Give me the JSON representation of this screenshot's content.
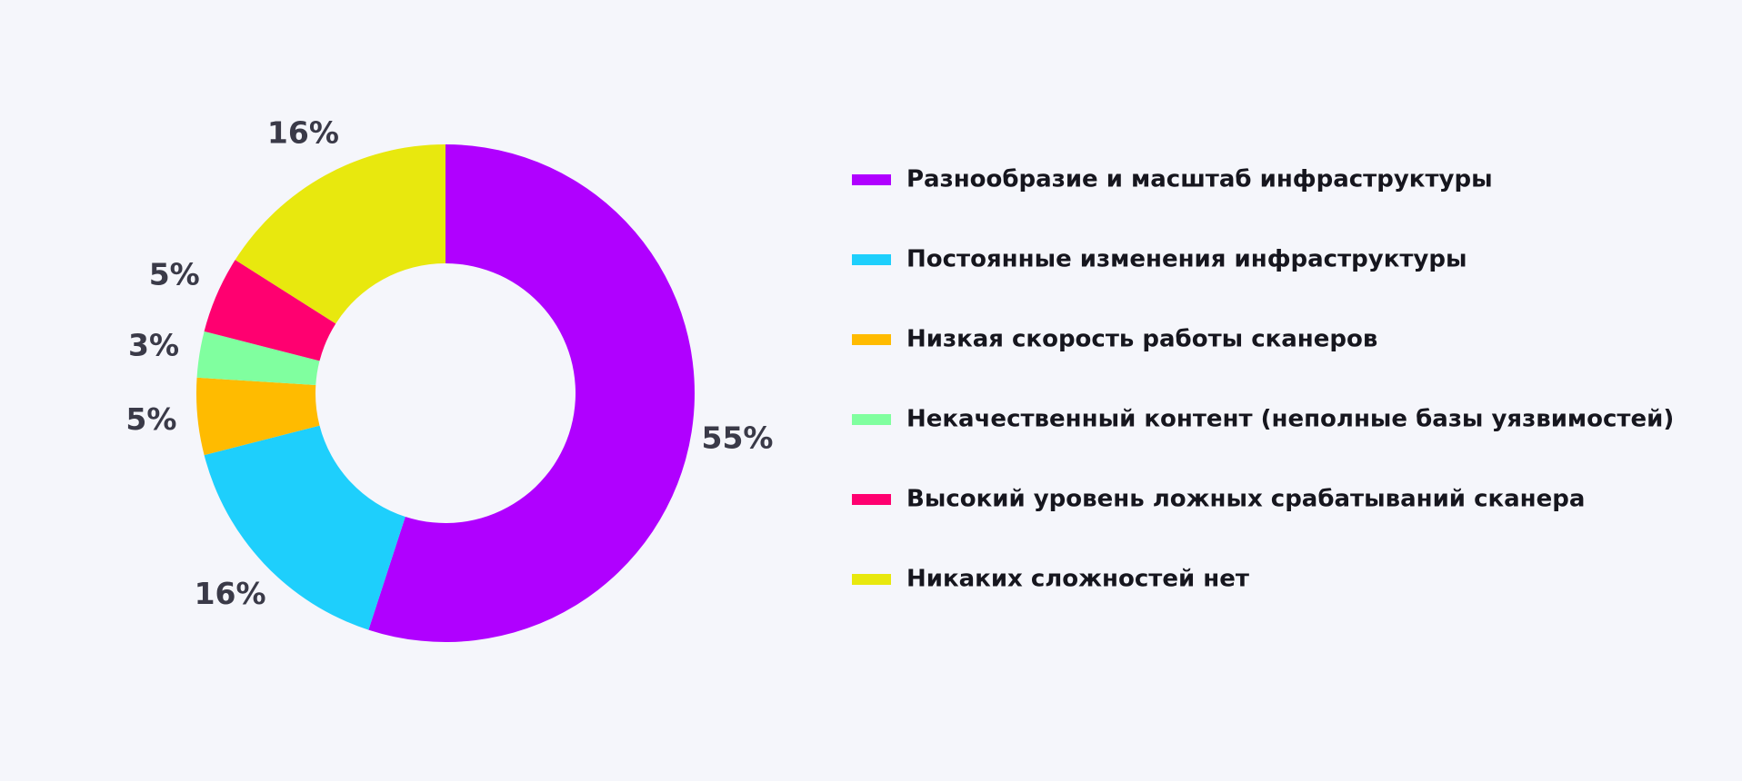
{
  "chart_data": {
    "type": "donut",
    "categories": [
      "Разнообразие и масштаб инфраструктуры",
      "Постоянные изменения инфраструктуры",
      "Низкая скорость работы сканеров",
      "Некачественный контент (неполные базы уязвимостей)",
      "Высокий уровень ложных срабатываний сканера",
      "Никаких сложностей нет"
    ],
    "values": [
      55,
      16,
      5,
      3,
      5,
      16
    ],
    "value_labels": [
      "55%",
      "16%",
      "5%",
      "3%",
      "5%",
      "16%"
    ],
    "colors": [
      "#b000ff",
      "#1ecffc",
      "#ffbb00",
      "#80ff9f",
      "#ff0070",
      "#e8e80e"
    ],
    "legend": "right"
  }
}
